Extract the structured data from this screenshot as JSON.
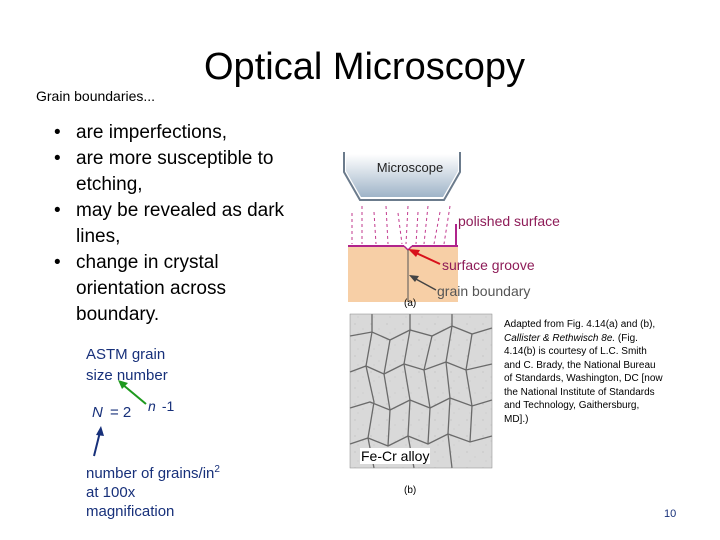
{
  "slide": {
    "title": "Optical Microscopy",
    "top_label": "Grain boundaries...",
    "bullets": [
      "are imperfections,",
      "are more susceptible to etching,",
      "may be revealed as dark lines,",
      "change in crystal orientation across boundary."
    ],
    "astm_line1": "ASTM grain",
    "astm_line2": "size number",
    "equation": {
      "lhs": "N",
      "eq": "= 2",
      "exp_var": "n",
      "exp_rest": " -1"
    },
    "grains_desc": {
      "line1": "number of grains/in",
      "sup": "2",
      "line2": "at 100x",
      "line3": "magnification"
    },
    "page_number": "10"
  },
  "figure": {
    "microscope_label": "Microscope",
    "polished_surface_label": "polished surface",
    "surface_groove_label": "surface groove",
    "grain_boundary_label": "grain boundary",
    "label_a": "(a)",
    "label_b": "(b)",
    "alloy_label": "Fe-Cr alloy",
    "citation": {
      "part1": "Adapted from Fig. 4.14(a) and (b), ",
      "italic": "Callister & Rethwisch 8e.",
      "part2": " (Fig. 4.14(b) is courtesy of L.C. Smith and C. Brady, the National Bureau of Standards, Washington, DC [now the National Institute of Standards and Technology, Gaithersburg, MD].)"
    }
  },
  "colors": {
    "accent_blue": "#17307a",
    "magenta": "#8e1c58",
    "arrow_red": "#d8111b",
    "surface_line": "#b0248c",
    "sample_fill": "#f7cfa6",
    "arrow_green": "#1e9a1e"
  }
}
